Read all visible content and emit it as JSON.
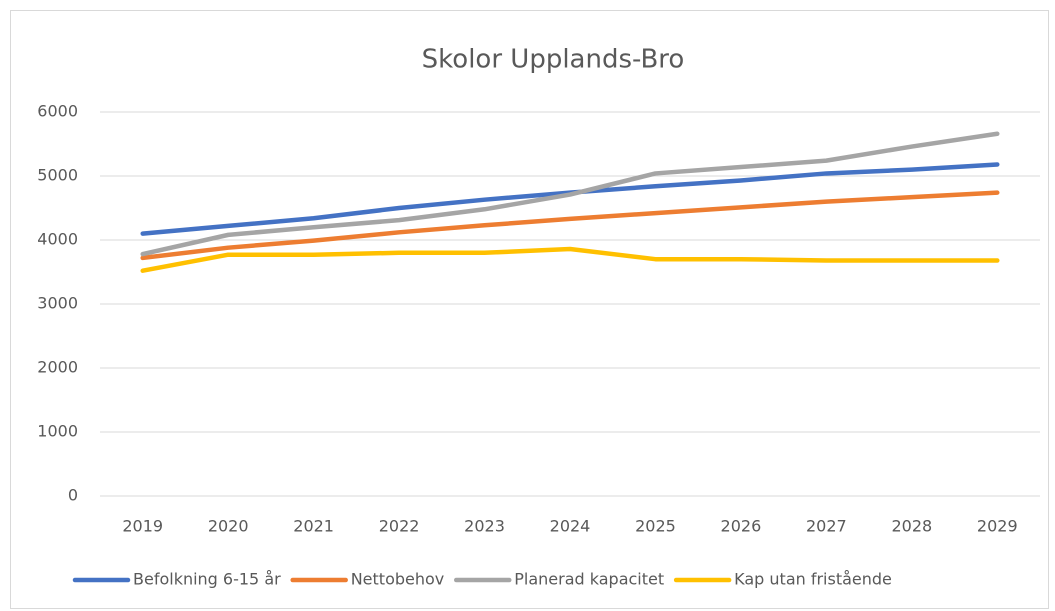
{
  "chart_data": {
    "type": "line",
    "title": "Skolor Upplands-Bro",
    "categories": [
      "2019",
      "2020",
      "2021",
      "2022",
      "2023",
      "2024",
      "2025",
      "2026",
      "2027",
      "2028",
      "2029"
    ],
    "series": [
      {
        "name": "Befolkning 6-15 år",
        "color": "#4472c4",
        "values": [
          4100,
          4220,
          4340,
          4500,
          4630,
          4740,
          4840,
          4930,
          5040,
          5100,
          5180
        ]
      },
      {
        "name": "Nettobehov",
        "color": "#ed7d31",
        "values": [
          3720,
          3880,
          3990,
          4120,
          4230,
          4330,
          4420,
          4510,
          4600,
          4670,
          4740
        ]
      },
      {
        "name": "Planerad kapacitet",
        "color": "#a5a5a5",
        "values": [
          3780,
          4080,
          4200,
          4310,
          4480,
          4710,
          5040,
          5140,
          5240,
          5460,
          5660
        ]
      },
      {
        "name": "Kap utan fristående",
        "color": "#ffc000",
        "values": [
          3520,
          3770,
          3770,
          3800,
          3800,
          3860,
          3700,
          3700,
          3680,
          3680,
          3680
        ]
      }
    ],
    "ylim": [
      0,
      6000
    ],
    "yticks": [
      0,
      1000,
      2000,
      3000,
      4000,
      5000,
      6000
    ],
    "grid": true,
    "legend": "bottom"
  }
}
